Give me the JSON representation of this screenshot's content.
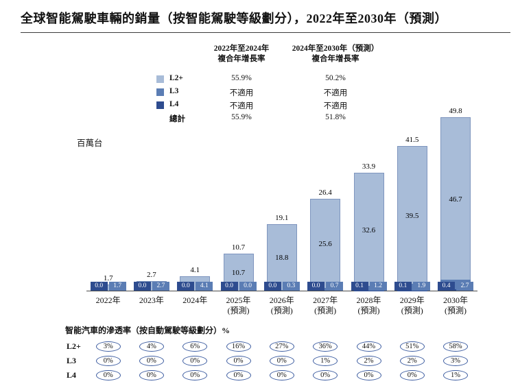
{
  "title": "全球智能駕駛車輛的銷量（按智能駕駛等級劃分），2022年至2030年（預測）",
  "y_unit": "百萬台",
  "legend": {
    "col1_header": [
      "2022年至2024年",
      "複合年增長率"
    ],
    "col2_header": [
      "2024年至2030年（預測）",
      "複合年增長率"
    ],
    "rows": [
      {
        "key": "l2plus",
        "label": "L2+",
        "color": "#a8bcd8",
        "cagr_2022_2024": "55.9%",
        "cagr_2024_2030": "50.2%"
      },
      {
        "key": "l3",
        "label": "L3",
        "color": "#5b7db4",
        "cagr_2022_2024": "不適用",
        "cagr_2024_2030": "不適用"
      },
      {
        "key": "l4",
        "label": "L4",
        "color": "#2e4c8f",
        "cagr_2022_2024": "不適用",
        "cagr_2024_2030": "不適用"
      },
      {
        "key": "total",
        "label": "總計",
        "color": null,
        "cagr_2022_2024": "55.9%",
        "cagr_2024_2030": "51.8%"
      }
    ]
  },
  "chart_data": {
    "type": "bar",
    "stacked": true,
    "unit": "百萬台",
    "categories": [
      "2022年",
      "2023年",
      "2024年",
      "2025年\n(預測)",
      "2026年\n(預測)",
      "2027年\n(預測)",
      "2028年\n(預測)",
      "2029年\n(預測)",
      "2030年\n(預測)"
    ],
    "series": [
      {
        "name": "L2+",
        "color": "#a8bcd8",
        "values": [
          1.7,
          2.7,
          4.1,
          10.7,
          18.8,
          25.6,
          32.6,
          39.5,
          46.7
        ]
      },
      {
        "name": "L3",
        "color": "#5b7db4",
        "values": [
          0.0,
          0.0,
          0.0,
          0.0,
          0.3,
          0.7,
          1.2,
          1.9,
          2.7
        ]
      },
      {
        "name": "L4",
        "color": "#2e4c8f",
        "values": [
          0.0,
          0.0,
          0.0,
          0.0,
          0.0,
          0.0,
          0.1,
          0.1,
          0.4
        ]
      }
    ],
    "totals": [
      1.7,
      2.7,
      4.1,
      10.7,
      19.1,
      26.4,
      33.9,
      41.5,
      49.8
    ],
    "legend_position": "top-left",
    "grid": false
  },
  "penetration": {
    "heading": "智能汽車的滲透率（按自動駕駛等級劃分）%",
    "rows": [
      {
        "key": "l2plus",
        "label": "L2+",
        "values": [
          "3%",
          "4%",
          "6%",
          "16%",
          "27%",
          "36%",
          "44%",
          "51%",
          "58%"
        ]
      },
      {
        "key": "l3",
        "label": "L3",
        "values": [
          "0%",
          "0%",
          "0%",
          "0%",
          "0%",
          "1%",
          "2%",
          "2%",
          "3%"
        ]
      },
      {
        "key": "l4",
        "label": "L4",
        "values": [
          "0%",
          "0%",
          "0%",
          "0%",
          "0%",
          "0%",
          "0%",
          "0%",
          "1%"
        ]
      }
    ]
  }
}
